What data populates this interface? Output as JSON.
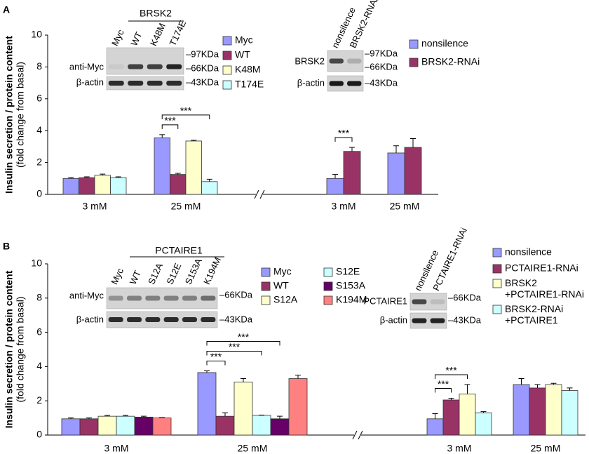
{
  "chart_data": [
    {
      "type": "bar",
      "panel_label": "A",
      "ylabel": [
        "Insulin secretion / protein content",
        "(fold change from basal)"
      ],
      "ylim": [
        0,
        10
      ],
      "yticks": [
        0,
        2,
        4,
        6,
        8,
        10
      ],
      "groups": [
        {
          "categories": [
            "3 mM",
            "25 mM"
          ],
          "series": [
            {
              "name": "Myc",
              "color": "#9999ff",
              "values": [
                1.0,
                3.55
              ],
              "errors": [
                0.05,
                0.2
              ]
            },
            {
              "name": "WT",
              "color": "#993366",
              "values": [
                1.05,
                1.25
              ],
              "errors": [
                0.05,
                0.07
              ]
            },
            {
              "name": "K48M",
              "color": "#ffffcc",
              "values": [
                1.2,
                3.35
              ],
              "errors": [
                0.07,
                0.05
              ]
            },
            {
              "name": "T174E",
              "color": "#ccffff",
              "values": [
                1.05,
                0.8
              ],
              "errors": [
                0.05,
                0.15
              ]
            }
          ],
          "annotations": [
            {
              "category": "25 mM",
              "between": [
                "Myc",
                "WT"
              ],
              "text": "***"
            },
            {
              "category": "25 mM",
              "between": [
                "Myc",
                "T174E"
              ],
              "text": "***"
            }
          ],
          "blot": {
            "header": "BRSK2",
            "lanes": [
              "Myc",
              "WT",
              "K48M",
              "T174E"
            ],
            "rows": [
              {
                "label": "anti-Myc",
                "markers": [
                  "–97KDa",
                  "–66KDa"
                ]
              },
              {
                "label": "β-actin",
                "markers": [
                  "–43KDa"
                ]
              }
            ]
          }
        },
        {
          "categories": [
            "3 mM",
            "25 mM"
          ],
          "series": [
            {
              "name": "nonsilence",
              "color": "#9999ff",
              "values": [
                1.0,
                2.6
              ],
              "errors": [
                0.25,
                0.45
              ]
            },
            {
              "name": "BRSK2-RNAi",
              "color": "#993366",
              "values": [
                2.7,
                2.95
              ],
              "errors": [
                0.25,
                0.55
              ]
            }
          ],
          "annotations": [
            {
              "category": "3 mM",
              "between": [
                "nonsilence",
                "BRSK2-RNAi"
              ],
              "text": "***"
            }
          ],
          "blot": {
            "lanes": [
              "nonsilence",
              "BRSK2-RNAi"
            ],
            "rows": [
              {
                "label": "BRSK2",
                "markers": [
                  "–97KDa",
                  "–66KDa"
                ]
              },
              {
                "label": "β-actin",
                "markers": [
                  "–43KDa"
                ]
              }
            ]
          }
        }
      ]
    },
    {
      "type": "bar",
      "panel_label": "B",
      "ylabel": [
        "Insulin secretion / protein content",
        "(fold change from basal)"
      ],
      "ylim": [
        0,
        10
      ],
      "yticks": [
        0,
        2,
        4,
        6,
        8,
        10
      ],
      "groups": [
        {
          "categories": [
            "3 mM",
            "25 mM"
          ],
          "series": [
            {
              "name": "Myc",
              "color": "#9999ff",
              "values": [
                0.95,
                3.65
              ],
              "errors": [
                0.05,
                0.1
              ]
            },
            {
              "name": "WT",
              "color": "#993366",
              "values": [
                0.95,
                1.1
              ],
              "errors": [
                0.05,
                0.2
              ]
            },
            {
              "name": "S12A",
              "color": "#ffffcc",
              "values": [
                1.1,
                3.1
              ],
              "errors": [
                0.05,
                0.2
              ]
            },
            {
              "name": "S12E",
              "color": "#ccffff",
              "values": [
                1.1,
                1.15
              ],
              "errors": [
                0.05,
                0.02
              ]
            },
            {
              "name": "S153A",
              "color": "#660066",
              "values": [
                1.05,
                0.95
              ],
              "errors": [
                0.05,
                0.15
              ]
            },
            {
              "name": "K194M",
              "color": "#ff8080",
              "values": [
                1.0,
                3.3
              ],
              "errors": [
                0.02,
                0.2
              ]
            }
          ],
          "annotations": [
            {
              "category": "25 mM",
              "between": [
                "Myc",
                "WT"
              ],
              "text": "***"
            },
            {
              "category": "25 mM",
              "between": [
                "Myc",
                "S12E"
              ],
              "text": "***"
            },
            {
              "category": "25 mM",
              "between": [
                "Myc",
                "S153A"
              ],
              "text": "***"
            }
          ],
          "blot": {
            "header": "PCTAIRE1",
            "lanes": [
              "Myc",
              "WT",
              "S12A",
              "S12E",
              "S153A",
              "K194M"
            ],
            "rows": [
              {
                "label": "anti-Myc",
                "markers": [
                  "–66KDa"
                ]
              },
              {
                "label": "β-actin",
                "markers": [
                  "–43KDa"
                ]
              }
            ]
          }
        },
        {
          "categories": [
            "3 mM",
            "25 mM"
          ],
          "series": [
            {
              "name": "nonsilence",
              "color": "#9999ff",
              "values": [
                0.95,
                2.95
              ],
              "errors": [
                0.3,
                0.35
              ]
            },
            {
              "name": "PCTAIRE1-RNAi",
              "color": "#993366",
              "values": [
                2.05,
                2.75
              ],
              "errors": [
                0.1,
                0.2
              ]
            },
            {
              "name": "BRSK2\n+PCTAIRE1-RNAi",
              "color": "#ffffcc",
              "values": [
                2.4,
                2.95
              ],
              "errors": [
                0.55,
                0.07
              ]
            },
            {
              "name": "BRSK2-RNAi\n+PCTAIRE1",
              "color": "#ccffff",
              "values": [
                1.3,
                2.6
              ],
              "errors": [
                0.07,
                0.15
              ]
            }
          ],
          "annotations": [
            {
              "category": "3 mM",
              "between": [
                "nonsilence",
                "PCTAIRE1-RNAi"
              ],
              "text": "***"
            },
            {
              "category": "3 mM",
              "between": [
                "nonsilence",
                "BRSK2\n+PCTAIRE1-RNAi"
              ],
              "text": "***"
            }
          ],
          "blot": {
            "lanes": [
              "nonsilence",
              "PCTAIRE1-RNAi"
            ],
            "rows": [
              {
                "label": "PCTAIRE1",
                "markers": [
                  "–66KDa"
                ]
              },
              {
                "label": "β-actin",
                "markers": [
                  "–43KDa"
                ]
              }
            ]
          }
        }
      ]
    }
  ]
}
